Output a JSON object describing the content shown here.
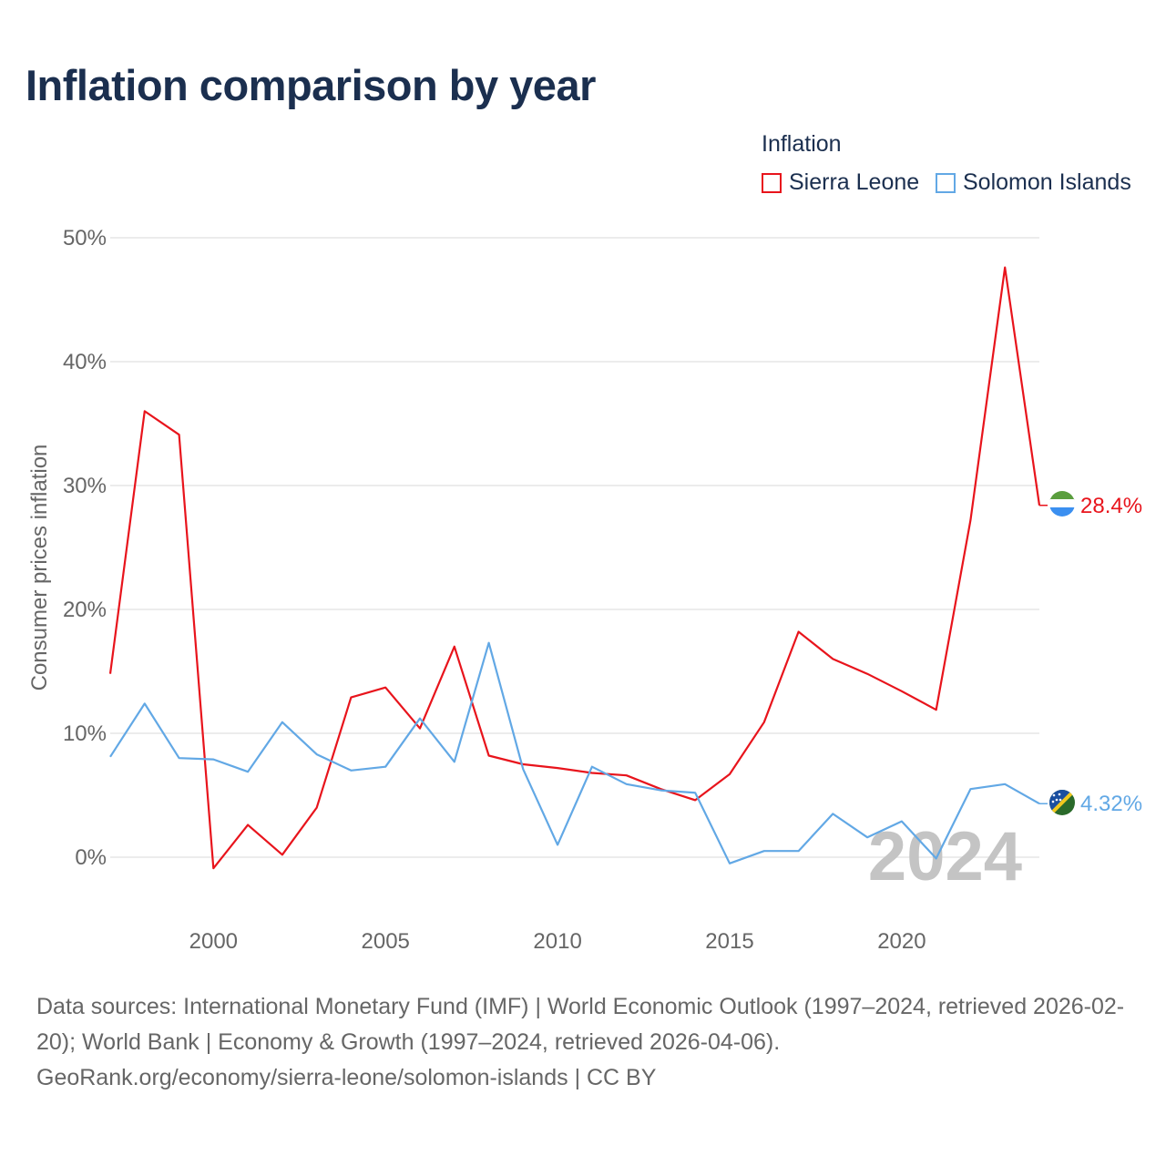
{
  "title": "Inflation comparison by year",
  "legend": {
    "title": "Inflation",
    "items": [
      {
        "name": "Sierra Leone",
        "color": "#e8141c"
      },
      {
        "name": "Solomon Islands",
        "color": "#62a8e5"
      }
    ]
  },
  "sources": {
    "line1": "Data sources: International Monetary Fund (IMF) | World Economic Outlook (1997–2024, retrieved 2026-02-20); World Bank | Economy & Growth (1997–2024, retrieved 2026-04-06).",
    "line2": "GeoRank.org/economy/sierra-leone/solomon-islands | CC BY"
  },
  "chart_data": {
    "type": "line",
    "ylabel": "Consumer prices inflation",
    "xlabel": "",
    "xlim": [
      1997,
      2024
    ],
    "ylim": [
      -5,
      50
    ],
    "x_ticks": [
      2000,
      2005,
      2010,
      2015,
      2020
    ],
    "y_ticks": [
      0,
      10,
      20,
      30,
      40,
      50
    ],
    "y_tick_labels": [
      "0%",
      "10%",
      "20%",
      "30%",
      "40%",
      "50%"
    ],
    "current_year": "2024",
    "x": [
      1997,
      1998,
      1999,
      2000,
      2001,
      2002,
      2003,
      2004,
      2005,
      2006,
      2007,
      2008,
      2009,
      2010,
      2011,
      2012,
      2013,
      2014,
      2015,
      2016,
      2017,
      2018,
      2019,
      2020,
      2021,
      2022,
      2023,
      2024
    ],
    "series": [
      {
        "name": "Sierra Leone",
        "color": "#e8141c",
        "end_label": "28.4%",
        "values": [
          14.8,
          36.0,
          34.1,
          -0.9,
          2.6,
          0.2,
          4.0,
          12.9,
          13.7,
          10.4,
          17.0,
          8.2,
          7.5,
          7.2,
          6.8,
          6.6,
          5.5,
          4.6,
          6.7,
          10.9,
          18.2,
          16.0,
          14.8,
          13.4,
          11.9,
          27.2,
          47.6,
          28.4
        ]
      },
      {
        "name": "Solomon Islands",
        "color": "#62a8e5",
        "end_label": "4.32%",
        "values": [
          8.1,
          12.4,
          8.0,
          7.9,
          6.9,
          10.9,
          8.3,
          7.0,
          7.3,
          11.2,
          7.7,
          17.3,
          7.1,
          1.0,
          7.3,
          5.9,
          5.4,
          5.2,
          -0.5,
          0.5,
          0.5,
          3.5,
          1.6,
          2.9,
          -0.1,
          5.5,
          5.9,
          4.32
        ]
      }
    ]
  }
}
